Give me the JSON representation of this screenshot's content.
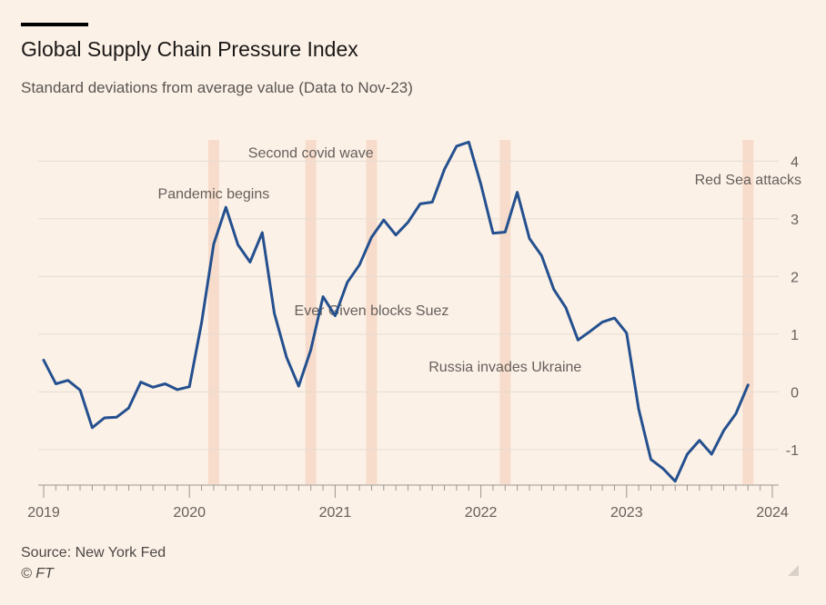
{
  "header": {
    "title": "Global Supply Chain Pressure Index",
    "subtitle": "Standard deviations from average value (Data to Nov-23)"
  },
  "footer": {
    "source": "Source: New York Fed",
    "copyright": "© FT"
  },
  "colors": {
    "background": "#fcf1e7",
    "line": "#24508f",
    "band": "#f7dccb",
    "grid": "#e6dcd2",
    "text": "#66605c"
  },
  "chart_data": {
    "type": "line",
    "title": "Global Supply Chain Pressure Index",
    "subtitle": "Standard deviations from average value (Data to Nov-23)",
    "xlabel": "",
    "ylabel": "",
    "xlim": [
      "2019-01",
      "2024-01"
    ],
    "ylim": [
      -1.6,
      4.4
    ],
    "grid": true,
    "y_ticks": [
      4,
      3,
      2,
      1,
      0,
      -1
    ],
    "y_tick_labels": [
      "4",
      "3",
      "2",
      "1",
      "0",
      "-1"
    ],
    "y_axis_position": "right",
    "x_ticks": [
      "2019-01",
      "2020-01",
      "2021-01",
      "2022-01",
      "2023-01",
      "2024-01"
    ],
    "x_tick_labels": [
      "2019",
      "2020",
      "2021",
      "2022",
      "2023",
      "2024"
    ],
    "series": [
      {
        "x": [
          "2019-01",
          "2019-02",
          "2019-03",
          "2019-04",
          "2019-05",
          "2019-06",
          "2019-07",
          "2019-08",
          "2019-09",
          "2019-10",
          "2019-11",
          "2019-12",
          "2020-01",
          "2020-02",
          "2020-03",
          "2020-04",
          "2020-05",
          "2020-06",
          "2020-07",
          "2020-08",
          "2020-09",
          "2020-10",
          "2020-11",
          "2020-12",
          "2021-01",
          "2021-02",
          "2021-03",
          "2021-04",
          "2021-05",
          "2021-06",
          "2021-07",
          "2021-08",
          "2021-09",
          "2021-10",
          "2021-11",
          "2021-12",
          "2022-01",
          "2022-02",
          "2022-03",
          "2022-04",
          "2022-05",
          "2022-06",
          "2022-07",
          "2022-08",
          "2022-09",
          "2022-10",
          "2022-11",
          "2022-12",
          "2023-01",
          "2023-02",
          "2023-03",
          "2023-04",
          "2023-05",
          "2023-06",
          "2023-07",
          "2023-08",
          "2023-09",
          "2023-10",
          "2023-11"
        ],
        "values": [
          0.55,
          0.14,
          0.2,
          0.03,
          -0.62,
          -0.45,
          -0.44,
          -0.28,
          0.17,
          0.08,
          0.14,
          0.04,
          0.09,
          1.2,
          2.56,
          3.2,
          2.55,
          2.25,
          2.76,
          1.36,
          0.6,
          0.1,
          0.73,
          1.65,
          1.32,
          1.9,
          2.2,
          2.68,
          2.98,
          2.72,
          2.94,
          3.26,
          3.29,
          3.86,
          4.26,
          4.33,
          3.6,
          2.75,
          2.77,
          3.46,
          2.66,
          2.36,
          1.78,
          1.46,
          0.9,
          1.05,
          1.21,
          1.28,
          1.02,
          -0.3,
          -1.17,
          -1.33,
          -1.55,
          -1.08,
          -0.84,
          -1.08,
          -0.67,
          -0.38,
          0.12
        ]
      }
    ],
    "bands": [
      {
        "x": "2020-03"
      },
      {
        "x": "2020-11"
      },
      {
        "x": "2021-04"
      },
      {
        "x": "2022-03"
      },
      {
        "x": "2023-11"
      }
    ],
    "annotations": [
      {
        "text": "Pandemic begins",
        "x": "2020-03",
        "y": 3.35
      },
      {
        "text": "Second covid wave",
        "x": "2020-11",
        "y": 4.06
      },
      {
        "text": "Ever Given blocks Suez",
        "x": "2021-04",
        "y": 1.33
      },
      {
        "text": "Russia invades Ukraine",
        "x": "2022-03",
        "y": 0.35
      },
      {
        "text": "Red Sea attacks",
        "x": "2023-11",
        "y": 3.6
      }
    ]
  }
}
